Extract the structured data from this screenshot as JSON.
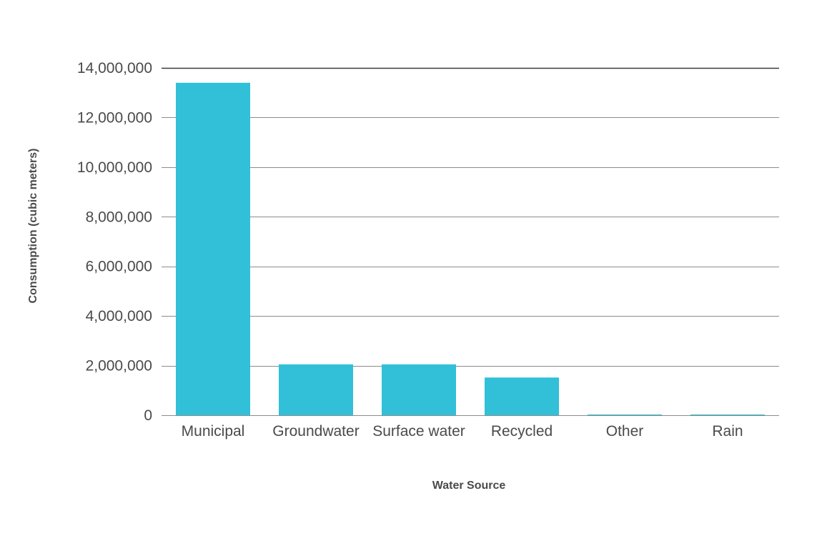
{
  "chart_data": {
    "type": "bar",
    "title": "",
    "xlabel": "Water Source",
    "ylabel": "Consumption (cubic meters)",
    "categories": [
      "Municipal",
      "Groundwater",
      "Surface water",
      "Recycled",
      "Other",
      "Rain"
    ],
    "values": [
      13400000,
      2050000,
      2050000,
      1520000,
      20000,
      20000
    ],
    "ylim": [
      0,
      14000000
    ],
    "yticks": [
      0,
      2000000,
      4000000,
      6000000,
      8000000,
      10000000,
      12000000,
      14000000
    ],
    "ytick_labels": [
      "0",
      "2,000,000",
      "4,000,000",
      "6,000,000",
      "8,000,000",
      "10,000,000",
      "12,000,000",
      "14,000,000"
    ],
    "grid": true,
    "legend": "none",
    "colors": {
      "bar": "#31c0d8",
      "grid": "#8c8c8c",
      "text": "#4a4a4a"
    }
  }
}
